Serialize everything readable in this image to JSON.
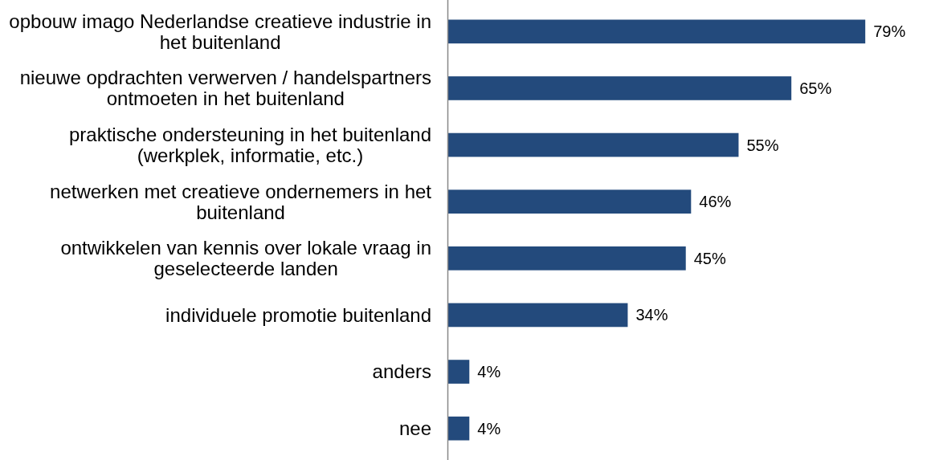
{
  "chart_data": {
    "type": "bar",
    "orientation": "horizontal",
    "categories": [
      "opbouw imago Nederlandse creatieve industrie in het buitenland",
      "nieuwe opdrachten verwerven / handelspartners ontmoeten in het buitenland",
      "praktische ondersteuning in het buitenland (werkplek, informatie, etc.)",
      "netwerken met creatieve ondernemers in het buitenland",
      "ontwikkelen van kennis over lokale vraag in geselecteerde landen",
      "individuele promotie buitenland",
      "anders",
      "nee"
    ],
    "values": [
      79,
      65,
      55,
      46,
      45,
      34,
      4,
      4
    ],
    "value_labels": [
      "79%",
      "65%",
      "55%",
      "46%",
      "45%",
      "34%",
      "4%",
      "4%"
    ],
    "color": "#234a7c"
  }
}
